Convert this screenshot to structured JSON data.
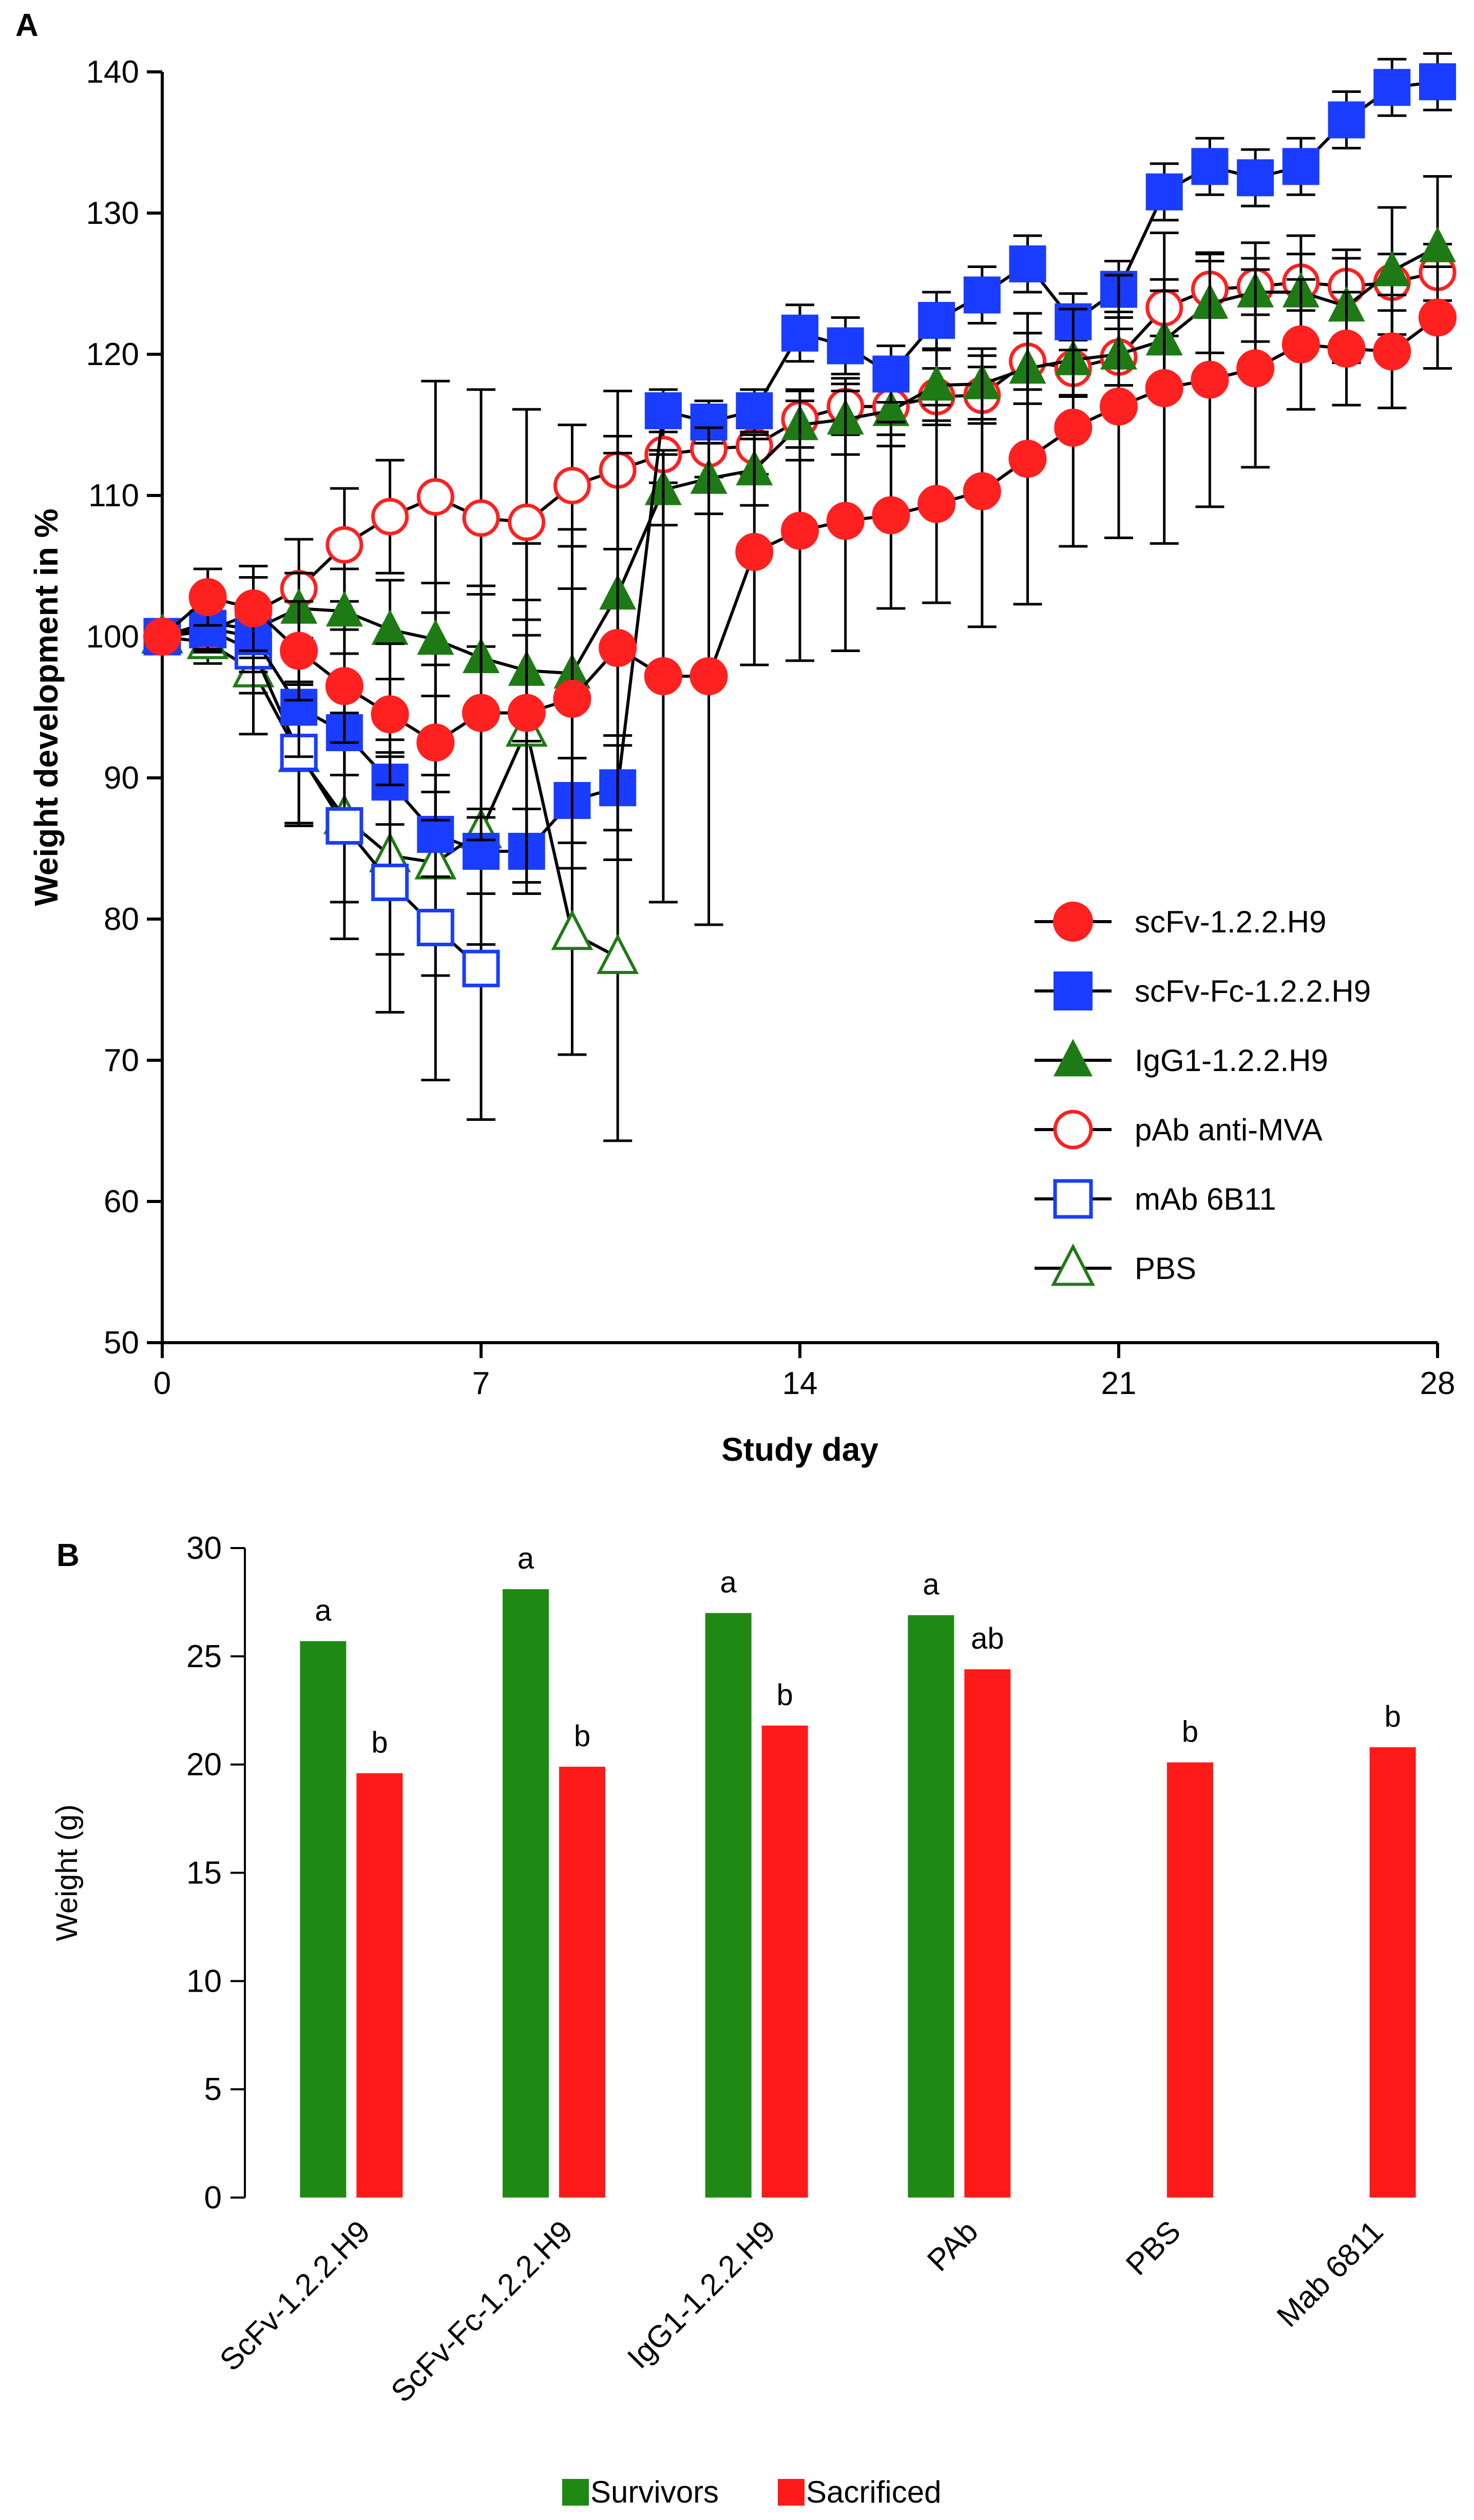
{
  "panel_labels": {
    "a": "A",
    "b": "B"
  },
  "chart_data": [
    {
      "type": "line",
      "title": "",
      "xlabel": "Study day",
      "ylabel": "Weight development in %",
      "xlim": [
        0,
        28
      ],
      "ylim": [
        50,
        140
      ],
      "x_ticks": [
        "0",
        "7",
        "14",
        "21",
        "28"
      ],
      "y_ticks": [
        "50",
        "60",
        "70",
        "80",
        "90",
        "100",
        "110",
        "120",
        "130",
        "140"
      ],
      "grid": false,
      "legend_position": "bottom-right",
      "series": [
        {
          "name": "scFv-1.2.2.H9",
          "marker": "filled-circle",
          "color": "#ff2020",
          "x": [
            0,
            1,
            2,
            3,
            4,
            5,
            6,
            7,
            8,
            9,
            10,
            11,
            12,
            13,
            14,
            15,
            16,
            17,
            18,
            19,
            20,
            21,
            22,
            23,
            24,
            25,
            26,
            27,
            28
          ],
          "y": [
            100,
            102.8,
            102,
            99,
            96.5,
            94.5,
            92.5,
            94.6,
            94.6,
            95.6,
            99.2,
            97.2,
            97.2,
            106,
            107.5,
            108.2,
            108.6,
            109.4,
            110.3,
            112.6,
            114.8,
            116.3,
            117.6,
            118.2,
            119,
            120.7,
            120.4,
            120.2,
            122.6
          ],
          "err": [
            0,
            2,
            3,
            3.5,
            4,
            5,
            5.5,
            9,
            12,
            12,
            15,
            16,
            17.6,
            8,
            9.2,
            9.2,
            6.6,
            7,
            9.6,
            10.3,
            8.4,
            9.3,
            11,
            9,
            7,
            4.6,
            4,
            4,
            3.6
          ]
        },
        {
          "name": "scFv-Fc-1.2.2.H9",
          "marker": "filled-square",
          "color": "#1a3cff",
          "x": [
            0,
            1,
            2,
            3,
            4,
            5,
            6,
            7,
            8,
            9,
            10,
            11,
            12,
            13,
            14,
            15,
            16,
            17,
            18,
            19,
            20,
            21,
            22,
            23,
            24,
            25,
            26,
            27,
            28
          ],
          "y": [
            100,
            100.6,
            100,
            95,
            93.2,
            89.7,
            86,
            84.8,
            84.8,
            88.4,
            89.3,
            116,
            115.2,
            116,
            121.5,
            120.6,
            118.6,
            122.4,
            124.2,
            126.4,
            122.3,
            124.6,
            131.5,
            133.3,
            132.5,
            133.3,
            136.6,
            138.9,
            139.3
          ],
          "err": [
            0,
            1.5,
            2.5,
            3.5,
            3,
            3,
            3,
            3,
            3,
            3,
            3,
            1.5,
            1.5,
            1.5,
            2,
            2,
            2,
            2,
            2,
            2,
            2,
            2,
            2,
            2,
            2,
            2,
            2,
            2,
            2
          ]
        },
        {
          "name": "IgG1-1.2.2.H9",
          "marker": "filled-triangle",
          "color": "#1e7a14",
          "x": [
            0,
            1,
            2,
            3,
            4,
            5,
            6,
            7,
            8,
            9,
            10,
            11,
            12,
            13,
            14,
            15,
            16,
            17,
            18,
            19,
            20,
            21,
            22,
            23,
            24,
            25,
            26,
            27,
            28
          ],
          "y": [
            100,
            101,
            100.5,
            102,
            101.8,
            100.5,
            99.8,
            98.5,
            97.6,
            97.4,
            103,
            110.4,
            111.2,
            111.8,
            115,
            115.4,
            116,
            117.8,
            117.9,
            119,
            119.6,
            120,
            121,
            123.6,
            124.4,
            124.4,
            123.4,
            125.9,
            127.6
          ],
          "err": [
            0,
            1.5,
            2,
            2.5,
            3,
            3.5,
            4,
            4.5,
            5,
            6,
            10,
            2.5,
            2.5,
            2.5,
            2.5,
            2.5,
            2.5,
            2.5,
            2.5,
            2.5,
            2.5,
            3,
            3.5,
            3.5,
            3.5,
            4,
            4,
            4.5,
            5
          ]
        },
        {
          "name": "pAb anti-MVA",
          "marker": "open-circle",
          "color": "#ff2020",
          "x": [
            0,
            1,
            2,
            3,
            4,
            5,
            6,
            7,
            8,
            9,
            10,
            11,
            12,
            13,
            14,
            15,
            16,
            17,
            18,
            19,
            20,
            21,
            22,
            23,
            24,
            25,
            26,
            27,
            28
          ],
          "y": [
            100,
            100.4,
            101.7,
            103.4,
            106.5,
            108.5,
            109.9,
            108.4,
            108.1,
            110.7,
            111.8,
            112.9,
            113.3,
            113.5,
            115.4,
            116.3,
            116.3,
            117,
            117.1,
            119.5,
            119,
            119.8,
            123.3,
            124.6,
            124.8,
            125.1,
            124.8,
            125.1,
            125.8
          ],
          "err": [
            0,
            1.5,
            2.5,
            3.5,
            4,
            4,
            8.2,
            9.1,
            8,
            4.3,
            5.6,
            2,
            2,
            2,
            2,
            2,
            2,
            2,
            2,
            2,
            2,
            2,
            2,
            2,
            2,
            2,
            2,
            2,
            2
          ]
        },
        {
          "name": "mAb 6B11",
          "marker": "open-square",
          "color": "#1a3cff",
          "x": [
            0,
            1,
            2,
            3,
            4,
            5,
            6,
            7
          ],
          "y": [
            100,
            100.5,
            99,
            91.8,
            86.6,
            82.6,
            79.4,
            76.5
          ],
          "err": [
            0,
            1.5,
            3,
            5,
            8,
            9.2,
            10.8,
            10.7
          ]
        },
        {
          "name": "PBS",
          "marker": "open-triangle",
          "color": "#1e7a14",
          "x": [
            0,
            1,
            2,
            3,
            4,
            5,
            6,
            7,
            8,
            9,
            10
          ],
          "y": [
            100,
            99.6,
            97.6,
            91.6,
            87.2,
            84.5,
            84,
            86.2,
            93.4,
            79,
            77.3
          ],
          "err": [
            0,
            1.5,
            4.5,
            5,
            6,
            7,
            8,
            8,
            7.8,
            8.6,
            13
          ]
        }
      ]
    },
    {
      "type": "bar",
      "title": "",
      "xlabel": "",
      "ylabel": "Weight (g)",
      "ylim": [
        0,
        30
      ],
      "y_ticks": [
        "0",
        "5",
        "10",
        "15",
        "20",
        "25",
        "30"
      ],
      "grid": false,
      "legend_position": "bottom-center",
      "categories": [
        "ScFv-1.2.2.H9",
        "ScFv-Fc-1.2.2.H9",
        "IgG1-1.2.2.H9",
        "PAb",
        "PBS",
        "Mab 6811"
      ],
      "series": [
        {
          "name": "Survivors",
          "color": "#1e8a14",
          "values": [
            25.7,
            28.1,
            27.0,
            26.9,
            null,
            null
          ],
          "labels": [
            "a",
            "a",
            "a",
            "a",
            "",
            ""
          ]
        },
        {
          "name": "Sacrificed",
          "color": "#ff1a1a",
          "values": [
            19.6,
            19.9,
            21.8,
            24.4,
            20.1,
            20.8
          ],
          "labels": [
            "b",
            "b",
            "b",
            "ab",
            "b",
            "b"
          ]
        }
      ]
    }
  ]
}
